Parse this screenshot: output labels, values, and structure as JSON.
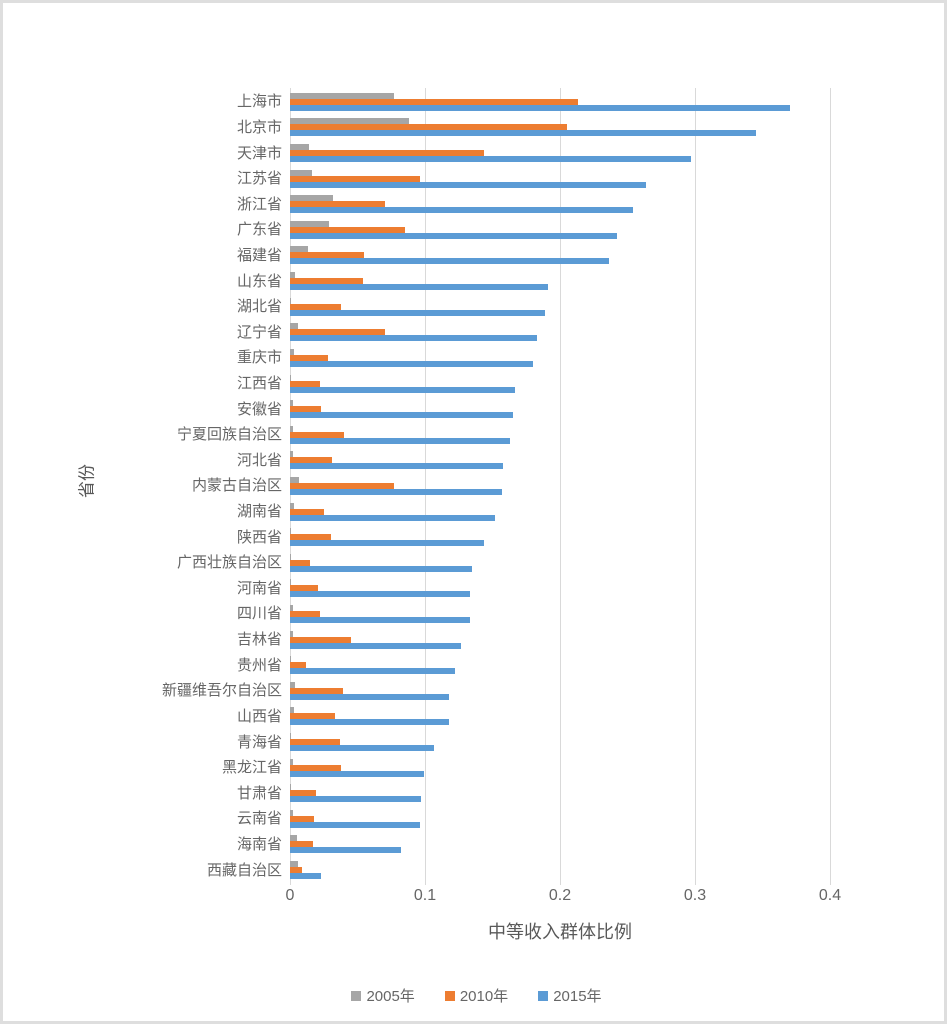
{
  "chart_data": {
    "type": "bar",
    "orientation": "horizontal",
    "title": "",
    "xlabel": "中等收入群体比例",
    "ylabel": "省份",
    "xlim": [
      0,
      0.4
    ],
    "x_ticks": [
      "0",
      "0.1",
      "0.2",
      "0.3",
      "0.4"
    ],
    "grid": true,
    "legend_position": "bottom",
    "categories": [
      "上海市",
      "北京市",
      "天津市",
      "江苏省",
      "浙江省",
      "广东省",
      "福建省",
      "山东省",
      "湖北省",
      "辽宁省",
      "重庆市",
      "江西省",
      "安徽省",
      "宁夏回族自治区",
      "河北省",
      "内蒙古自治区",
      "湖南省",
      "陕西省",
      "广西壮族自治区",
      "河南省",
      "四川省",
      "吉林省",
      "贵州省",
      "新疆维吾尔自治区",
      "山西省",
      "青海省",
      "黑龙江省",
      "甘肃省",
      "云南省",
      "海南省",
      "西藏自治区"
    ],
    "series": [
      {
        "name": "2005年",
        "color": "#a6a6a6",
        "values": [
          0.077,
          0.088,
          0.014,
          0.016,
          0.032,
          0.029,
          0.013,
          0.004,
          0.001,
          0.006,
          0.003,
          0.001,
          0.002,
          0.002,
          0.002,
          0.007,
          0.003,
          0.001,
          0.001,
          0.001,
          0.002,
          0.002,
          0.001,
          0.004,
          0.003,
          0.001,
          0.002,
          0.001,
          0.002,
          0.005,
          0.006
        ]
      },
      {
        "name": "2010年",
        "color": "#ed7d31",
        "values": [
          0.213,
          0.205,
          0.144,
          0.096,
          0.07,
          0.085,
          0.055,
          0.054,
          0.038,
          0.07,
          0.028,
          0.022,
          0.023,
          0.04,
          0.031,
          0.077,
          0.025,
          0.03,
          0.015,
          0.021,
          0.022,
          0.045,
          0.012,
          0.039,
          0.033,
          0.037,
          0.038,
          0.019,
          0.018,
          0.017,
          0.009
        ]
      },
      {
        "name": "2015年",
        "color": "#5b9bd5",
        "values": [
          0.37,
          0.345,
          0.297,
          0.264,
          0.254,
          0.242,
          0.236,
          0.191,
          0.189,
          0.183,
          0.18,
          0.167,
          0.165,
          0.163,
          0.158,
          0.157,
          0.152,
          0.144,
          0.135,
          0.133,
          0.133,
          0.127,
          0.122,
          0.118,
          0.118,
          0.107,
          0.099,
          0.097,
          0.096,
          0.082,
          0.023
        ]
      }
    ],
    "colors": {
      "gridline": "#d9d9d9",
      "axis_text": "#666666",
      "border": "#dedede"
    }
  }
}
